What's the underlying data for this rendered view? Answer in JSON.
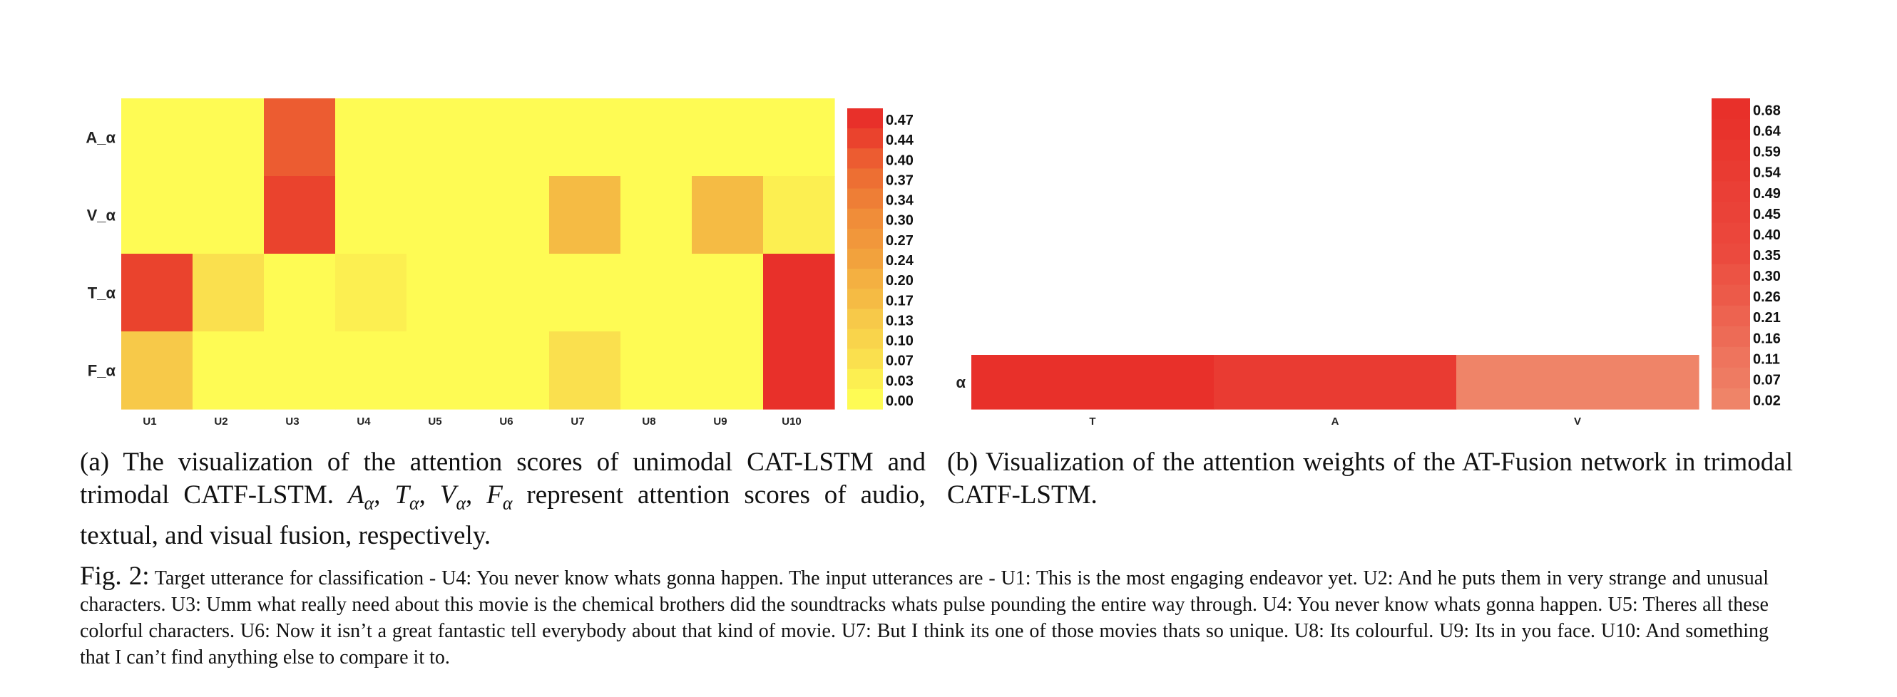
{
  "chart_data": [
    {
      "type": "heatmap",
      "rows": [
        "A_α",
        "V_α",
        "T_α",
        "F_α"
      ],
      "columns": [
        "U1",
        "U2",
        "U3",
        "U4",
        "U5",
        "U6",
        "U7",
        "U8",
        "U9",
        "U10"
      ],
      "values": [
        [
          0.0,
          0.0,
          0.4,
          0.0,
          0.0,
          0.0,
          0.0,
          0.0,
          0.0,
          0.0
        ],
        [
          0.0,
          0.0,
          0.44,
          0.0,
          0.0,
          0.0,
          0.17,
          0.0,
          0.17,
          0.03
        ],
        [
          0.44,
          0.07,
          0.0,
          0.03,
          0.0,
          0.0,
          0.0,
          0.0,
          0.0,
          0.47
        ],
        [
          0.13,
          0.0,
          0.0,
          0.0,
          0.0,
          0.0,
          0.07,
          0.0,
          0.0,
          0.47
        ]
      ],
      "colorbar_ticks": [
        "0.47",
        "0.44",
        "0.40",
        "0.37",
        "0.34",
        "0.30",
        "0.27",
        "0.24",
        "0.20",
        "0.17",
        "0.13",
        "0.10",
        "0.07",
        "0.03",
        "0.00"
      ],
      "colorbar_range": [
        0.0,
        0.47
      ],
      "colormap": [
        "#fefb54",
        "#f8cd4a",
        "#f2a43d",
        "#ee7a35",
        "#e8302a"
      ],
      "caption": "(a) The visualization of the attention scores of unimodal CAT-LSTM and trimodal CATF-LSTM."
    },
    {
      "type": "heatmap",
      "rows": [
        "α"
      ],
      "columns": [
        "T",
        "A",
        "V"
      ],
      "values": [
        [
          0.68,
          0.54,
          0.02
        ]
      ],
      "colorbar_ticks": [
        "0.68",
        "0.64",
        "0.59",
        "0.54",
        "0.49",
        "0.45",
        "0.40",
        "0.35",
        "0.30",
        "0.26",
        "0.21",
        "0.16",
        "0.11",
        "0.07",
        "0.02"
      ],
      "colorbar_range": [
        0.02,
        0.68
      ],
      "colormap": [
        "#ef8468",
        "#eb4a3e",
        "#e8302a"
      ],
      "caption": "(b) Visualization of the attention weights of the AT-Fusion network in trimodal CATF-LSTM."
    }
  ],
  "captions": {
    "a_prefix": "(a) The visualization of the attention scores of unimodal CAT-LSTM and trimodal CATF-LSTM. ",
    "a_math_A": "A",
    "a_math_T": "T",
    "a_math_V": "V",
    "a_math_F": "F",
    "a_math_sub": "α",
    "a_sep": ", ",
    "a_suffix": " represent attention scores of audio, textual, and visual fusion, respectively.",
    "b": "(b) Visualization of the attention weights of the AT-Fusion network in trimodal CATF-LSTM.",
    "fig_label": "Fig. 2:",
    "fig_text": "Target utterance for classification - U4: You never know whats gonna happen. The input utterances are - U1: This is the most engaging endeavor yet. U2: And he puts them in very strange and unusual characters. U3: Umm what really need about this movie is the chemical brothers did the soundtracks whats pulse pounding the entire way through. U4: You never know whats gonna happen. U5: Theres all these colorful characters. U6: Now it isn’t a great fantastic tell everybody about that kind of movie. U7: But I think its one of those movies thats so unique. U8: Its colourful. U9: Its in you face. U10: And something that I can’t find anything else to compare it to."
  }
}
